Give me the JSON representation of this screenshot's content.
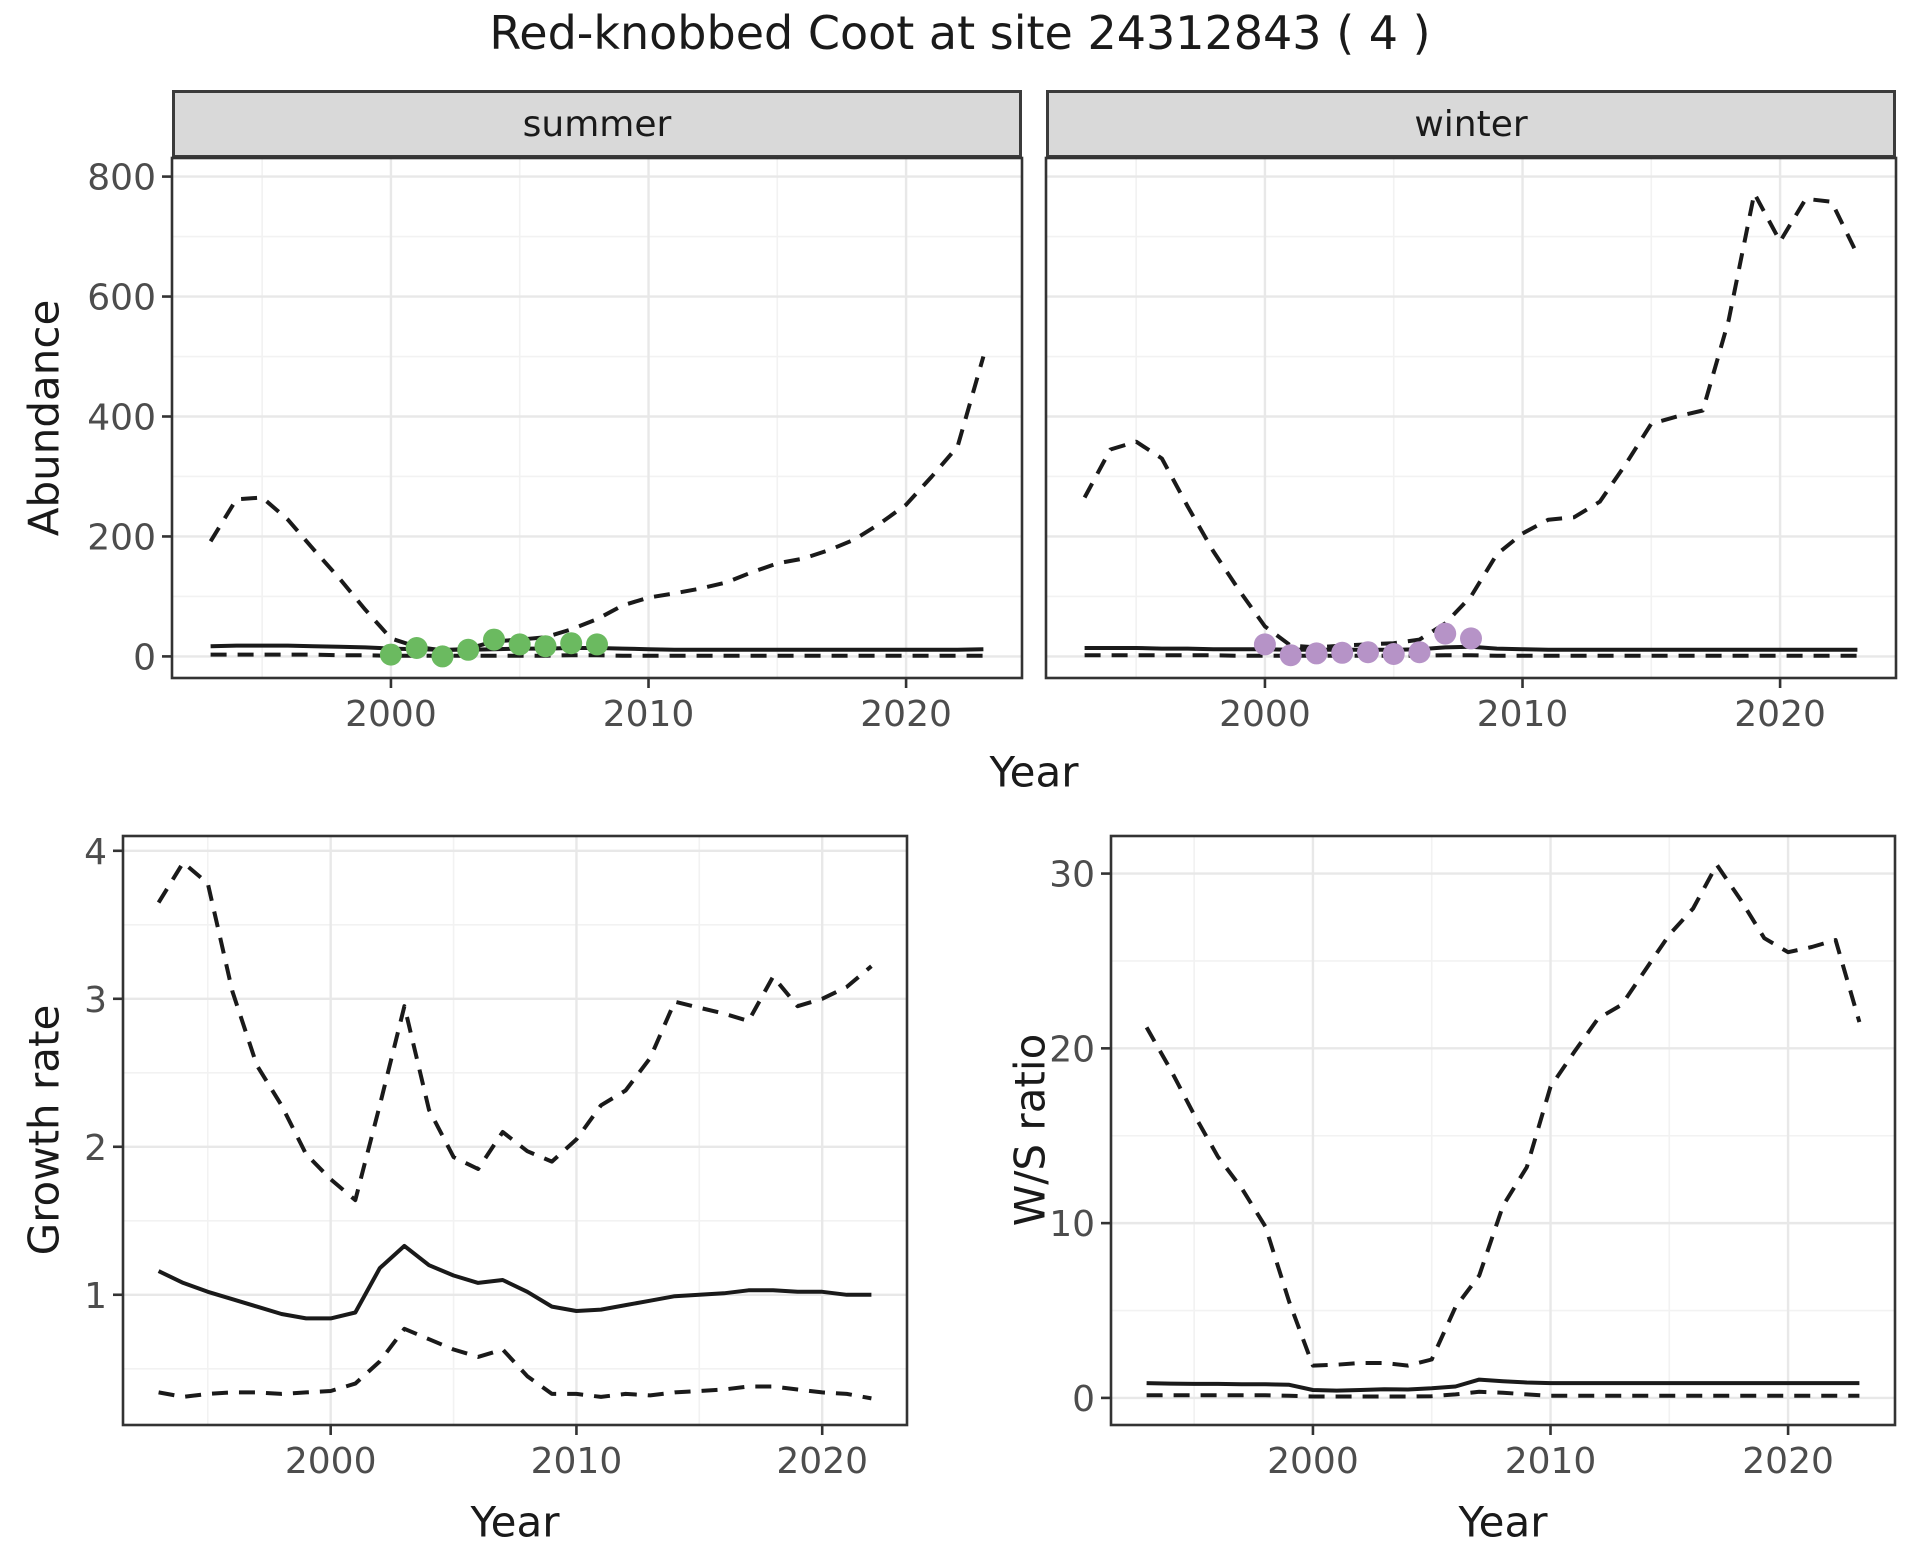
{
  "title": "Red-knobbed Coot at site 24312843 ( 4 )",
  "colors": {
    "accent_green": "#6BBA60",
    "accent_purple": "#B693C7",
    "line": "#1A1A1A",
    "grid_major": "#E8E8E8",
    "grid_minor": "#F2F2F2",
    "strip_bg": "#D9D9D9",
    "panel_border": "#333333",
    "tick_text": "#4D4D4D"
  },
  "axis_titles": {
    "abundance": "Abundance",
    "year_top": "Year",
    "growth": "Growth rate",
    "year_bottom_left": "Year",
    "ws": "W/S ratio",
    "year_bottom_right": "Year"
  },
  "chart_data": [
    {
      "panel": "summer",
      "facet_label": "summer",
      "type": "line",
      "xlabel": "Year",
      "ylabel": "Abundance",
      "xlim": [
        1991.5,
        2024.5
      ],
      "ylim": [
        -36,
        831
      ],
      "xticks": [
        2000,
        2010,
        2020
      ],
      "xticks_minor": [
        1995,
        2005,
        2015
      ],
      "yticks": [
        0,
        200,
        400,
        600,
        800
      ],
      "yticks_minor": [
        100,
        300,
        500,
        700
      ],
      "show_ytick_labels": true,
      "x": [
        1993,
        1994,
        1995,
        1996,
        1997,
        1998,
        1999,
        2000,
        2001,
        2002,
        2003,
        2004,
        2005,
        2006,
        2007,
        2008,
        2009,
        2010,
        2011,
        2012,
        2013,
        2014,
        2015,
        2016,
        2017,
        2018,
        2019,
        2020,
        2021,
        2022,
        2023
      ],
      "series": [
        {
          "name": "upper-95ci",
          "style": "dashed",
          "values": [
            192,
            262,
            265,
            228,
            178,
            130,
            78,
            30,
            16,
            10,
            13,
            25,
            28,
            32,
            45,
            62,
            85,
            98,
            105,
            113,
            123,
            140,
            155,
            163,
            177,
            195,
            222,
            253,
            300,
            350,
            500
          ]
        },
        {
          "name": "modelled-abundance",
          "style": "solid",
          "values": [
            17,
            18,
            18,
            18,
            17,
            16,
            15,
            13,
            12,
            11,
            11,
            12,
            13,
            13,
            14,
            14,
            13,
            12,
            11,
            11,
            11,
            11,
            11,
            11,
            11,
            11,
            11,
            11,
            11,
            11,
            12
          ]
        },
        {
          "name": "lower-95ci",
          "style": "dashed",
          "values": [
            3,
            3,
            3,
            3,
            3,
            2,
            2,
            1,
            1,
            1,
            1,
            1,
            1,
            1,
            2,
            2,
            1,
            1,
            1,
            1,
            1,
            1,
            1,
            1,
            1,
            1,
            1,
            1,
            1,
            1,
            1
          ]
        }
      ],
      "points": {
        "name": "observed-counts",
        "color_key": "accent_green",
        "x": [
          2000,
          2001,
          2002,
          2003,
          2004,
          2005,
          2006,
          2007,
          2008
        ],
        "y": [
          3,
          14,
          0,
          11,
          28,
          20,
          17,
          22,
          20
        ]
      }
    },
    {
      "panel": "winter",
      "facet_label": "winter",
      "type": "line",
      "xlabel": "Year",
      "ylabel": "Abundance",
      "xlim": [
        1991.5,
        2024.5
      ],
      "ylim": [
        -36,
        831
      ],
      "xticks": [
        2000,
        2010,
        2020
      ],
      "xticks_minor": [
        1995,
        2005,
        2015
      ],
      "yticks": [
        0,
        200,
        400,
        600,
        800
      ],
      "yticks_minor": [
        100,
        300,
        500,
        700
      ],
      "show_ytick_labels": false,
      "x": [
        1993,
        1994,
        1995,
        1996,
        1997,
        1998,
        1999,
        2000,
        2001,
        2002,
        2003,
        2004,
        2005,
        2006,
        2007,
        2008,
        2009,
        2010,
        2011,
        2012,
        2013,
        2014,
        2015,
        2016,
        2017,
        2018,
        2019,
        2020,
        2021,
        2022,
        2023
      ],
      "series": [
        {
          "name": "upper-95ci",
          "style": "dashed",
          "values": [
            265,
            345,
            358,
            330,
            250,
            175,
            110,
            50,
            18,
            15,
            18,
            20,
            22,
            28,
            55,
            100,
            170,
            205,
            228,
            232,
            258,
            320,
            388,
            400,
            410,
            560,
            772,
            692,
            763,
            758,
            670
          ]
        },
        {
          "name": "modelled-abundance",
          "style": "solid",
          "values": [
            14,
            14,
            14,
            13,
            13,
            12,
            12,
            12,
            11,
            11,
            11,
            11,
            11,
            12,
            15,
            16,
            13,
            12,
            11,
            11,
            11,
            11,
            11,
            11,
            11,
            11,
            11,
            11,
            11,
            11,
            11
          ]
        },
        {
          "name": "lower-95ci",
          "style": "dashed",
          "values": [
            2,
            2,
            2,
            2,
            2,
            2,
            1,
            1,
            1,
            1,
            1,
            1,
            1,
            1,
            2,
            2,
            1,
            1,
            1,
            1,
            1,
            1,
            1,
            1,
            1,
            1,
            1,
            1,
            1,
            1,
            1
          ]
        }
      ],
      "points": {
        "name": "observed-counts",
        "color_key": "accent_purple",
        "x": [
          2000,
          2001,
          2002,
          2003,
          2004,
          2005,
          2006,
          2007,
          2008
        ],
        "y": [
          20,
          2,
          5,
          6,
          7,
          4,
          7,
          38,
          30
        ]
      }
    },
    {
      "panel": "growth",
      "facet_label": "",
      "type": "line",
      "xlabel": "Year",
      "ylabel": "Growth rate",
      "xlim": [
        1991.55,
        2023.45
      ],
      "ylim": [
        0.12,
        4.1
      ],
      "xticks": [
        2000,
        2010,
        2020
      ],
      "xticks_minor": [
        1995,
        2005,
        2015
      ],
      "yticks": [
        1,
        2,
        3,
        4
      ],
      "yticks_minor": [
        0.5,
        1.5,
        2.5,
        3.5
      ],
      "show_ytick_labels": true,
      "x": [
        1993,
        1994,
        1995,
        1996,
        1997,
        1998,
        1999,
        2000,
        2001,
        2002,
        2003,
        2004,
        2005,
        2006,
        2007,
        2008,
        2009,
        2010,
        2011,
        2012,
        2013,
        2014,
        2015,
        2016,
        2017,
        2018,
        2019,
        2020,
        2021,
        2022
      ],
      "series": [
        {
          "name": "upper-95ci",
          "style": "dashed",
          "values": [
            3.65,
            3.92,
            3.78,
            3.05,
            2.55,
            2.28,
            1.95,
            1.78,
            1.64,
            2.28,
            2.95,
            2.25,
            1.93,
            1.85,
            2.1,
            1.97,
            1.9,
            2.05,
            2.28,
            2.38,
            2.6,
            2.98,
            2.94,
            2.9,
            2.85,
            3.15,
            2.95,
            3.0,
            3.08,
            3.22
          ]
        },
        {
          "name": "modelled-growth-rate",
          "style": "solid",
          "values": [
            1.16,
            1.08,
            1.02,
            0.97,
            0.92,
            0.87,
            0.84,
            0.84,
            0.88,
            1.18,
            1.33,
            1.2,
            1.13,
            1.08,
            1.1,
            1.02,
            0.92,
            0.89,
            0.9,
            0.93,
            0.96,
            0.99,
            1.0,
            1.01,
            1.03,
            1.03,
            1.02,
            1.02,
            1.0,
            1.0
          ]
        },
        {
          "name": "lower-95ci",
          "style": "dashed",
          "values": [
            0.34,
            0.31,
            0.33,
            0.34,
            0.34,
            0.33,
            0.34,
            0.35,
            0.4,
            0.55,
            0.77,
            0.7,
            0.63,
            0.58,
            0.63,
            0.45,
            0.33,
            0.33,
            0.31,
            0.33,
            0.32,
            0.34,
            0.35,
            0.36,
            0.38,
            0.38,
            0.36,
            0.34,
            0.33,
            0.3
          ]
        }
      ]
    },
    {
      "panel": "ws",
      "facet_label": "",
      "type": "line",
      "xlabel": "Year",
      "ylabel": "W/S ratio",
      "xlim": [
        1991.5,
        2024.5
      ],
      "ylim": [
        -1.55,
        32.15
      ],
      "xticks": [
        2000,
        2010,
        2020
      ],
      "xticks_minor": [
        1995,
        2005,
        2015
      ],
      "yticks": [
        0,
        10,
        20,
        30
      ],
      "yticks_minor": [
        5,
        15,
        25
      ],
      "show_ytick_labels": true,
      "x": [
        1993,
        1994,
        1995,
        1996,
        1997,
        1998,
        1999,
        2000,
        2001,
        2002,
        2003,
        2004,
        2005,
        2006,
        2007,
        2008,
        2009,
        2010,
        2011,
        2012,
        2013,
        2014,
        2015,
        2016,
        2017,
        2018,
        2019,
        2020,
        2021,
        2022,
        2023
      ],
      "series": [
        {
          "name": "upper-95ci",
          "style": "dashed",
          "values": [
            21.2,
            18.8,
            16.2,
            13.8,
            12.0,
            9.8,
            5.5,
            1.85,
            1.9,
            2.0,
            2.0,
            1.85,
            2.2,
            5.2,
            7.0,
            11.0,
            13.2,
            17.8,
            19.8,
            21.7,
            22.5,
            24.5,
            26.5,
            28.0,
            30.5,
            28.5,
            26.3,
            25.5,
            25.8,
            26.2,
            21.5
          ]
        },
        {
          "name": "modelled-ws-ratio",
          "style": "solid",
          "values": [
            0.85,
            0.82,
            0.8,
            0.8,
            0.78,
            0.78,
            0.75,
            0.45,
            0.42,
            0.45,
            0.5,
            0.48,
            0.55,
            0.65,
            1.05,
            0.95,
            0.88,
            0.85,
            0.85,
            0.85,
            0.85,
            0.85,
            0.85,
            0.85,
            0.85,
            0.85,
            0.85,
            0.85,
            0.85,
            0.85,
            0.85
          ]
        },
        {
          "name": "lower-95ci",
          "style": "dashed",
          "values": [
            0.15,
            0.15,
            0.15,
            0.15,
            0.15,
            0.15,
            0.12,
            0.08,
            0.08,
            0.08,
            0.08,
            0.08,
            0.1,
            0.2,
            0.35,
            0.3,
            0.2,
            0.12,
            0.12,
            0.12,
            0.12,
            0.12,
            0.12,
            0.12,
            0.12,
            0.12,
            0.12,
            0.12,
            0.12,
            0.12,
            0.12
          ]
        }
      ]
    }
  ]
}
